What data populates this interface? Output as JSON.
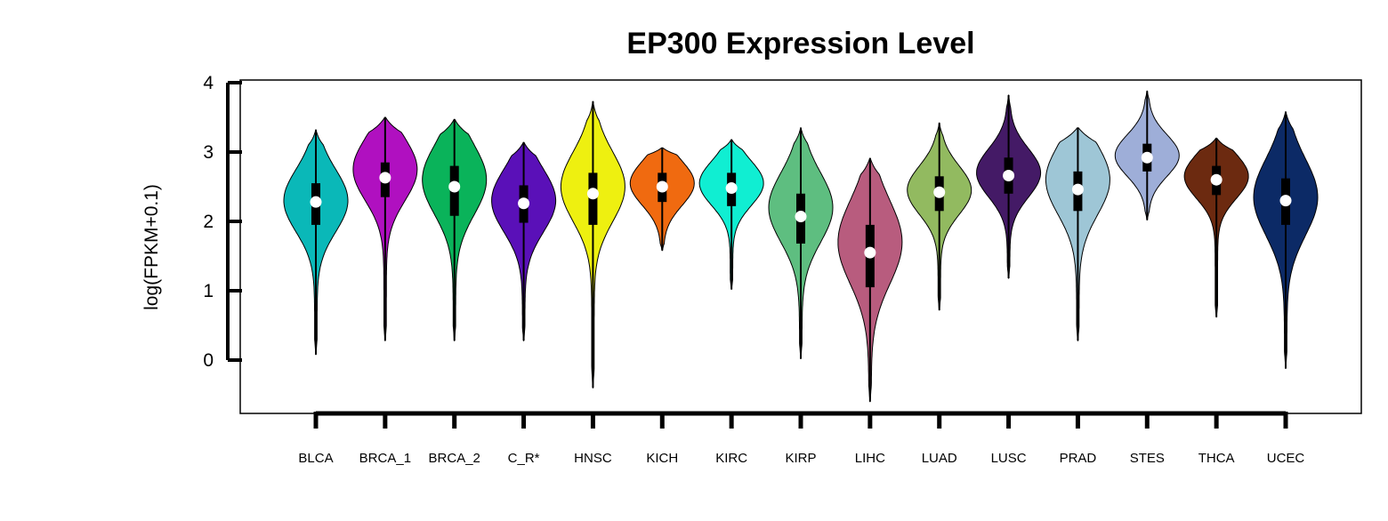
{
  "chart_data": {
    "type": "violin",
    "title": "EP300 Expression Level",
    "xlabel": "",
    "ylabel": "log(FPKM+0.1)",
    "ylim": [
      -0.78,
      4.05
    ],
    "yticks": [
      0,
      1,
      2,
      3,
      4
    ],
    "tick_labels": [
      "0",
      "1",
      "2",
      "3",
      "4"
    ],
    "grid": false,
    "legend": "none",
    "categories": [
      "BLCA",
      "BRCA_1",
      "BRCA_2",
      "C_R*",
      "HNSC",
      "KICH",
      "KIRC",
      "KIRP",
      "LIHC",
      "LUAD",
      "LUSC",
      "PRAD",
      "STES",
      "THCA",
      "UCEC"
    ],
    "colors": [
      "#0ab8b8",
      "#b010c0",
      "#0ab35a",
      "#5a10b8",
      "#eef010",
      "#f06a10",
      "#10eed2",
      "#5ebe80",
      "#b85c7e",
      "#92ba60",
      "#441a66",
      "#9ec6d6",
      "#9eaed8",
      "#6c2a10",
      "#0c2a66"
    ],
    "series": [
      {
        "min": 0.08,
        "max": 3.32,
        "q1": 1.95,
        "median": 2.28,
        "q3": 2.55,
        "mode": 2.3,
        "spread": 0.45
      },
      {
        "min": 0.28,
        "max": 3.5,
        "q1": 2.35,
        "median": 2.63,
        "q3": 2.85,
        "mode": 2.75,
        "spread": 0.45
      },
      {
        "min": 0.28,
        "max": 3.47,
        "q1": 2.08,
        "median": 2.5,
        "q3": 2.8,
        "mode": 2.6,
        "spread": 0.5
      },
      {
        "min": 0.28,
        "max": 3.14,
        "q1": 1.98,
        "median": 2.26,
        "q3": 2.52,
        "mode": 2.3,
        "spread": 0.45
      },
      {
        "min": -0.4,
        "max": 3.73,
        "q1": 1.95,
        "median": 2.4,
        "q3": 2.7,
        "mode": 2.5,
        "spread": 0.5
      },
      {
        "min": 1.58,
        "max": 3.06,
        "q1": 2.28,
        "median": 2.5,
        "q3": 2.7,
        "mode": 2.55,
        "spread": 0.32
      },
      {
        "min": 1.02,
        "max": 3.18,
        "q1": 2.22,
        "median": 2.48,
        "q3": 2.7,
        "mode": 2.55,
        "spread": 0.32
      },
      {
        "min": 0.02,
        "max": 3.35,
        "q1": 1.68,
        "median": 2.07,
        "q3": 2.4,
        "mode": 2.2,
        "spread": 0.5
      },
      {
        "min": -0.6,
        "max": 2.91,
        "q1": 1.05,
        "median": 1.55,
        "q3": 1.95,
        "mode": 1.7,
        "spread": 0.6
      },
      {
        "min": 0.72,
        "max": 3.42,
        "q1": 2.15,
        "median": 2.42,
        "q3": 2.65,
        "mode": 2.45,
        "spread": 0.35
      },
      {
        "min": 1.18,
        "max": 3.82,
        "q1": 2.4,
        "median": 2.66,
        "q3": 2.92,
        "mode": 2.7,
        "spread": 0.35
      },
      {
        "min": 0.28,
        "max": 3.35,
        "q1": 2.15,
        "median": 2.46,
        "q3": 2.72,
        "mode": 2.6,
        "spread": 0.5
      },
      {
        "min": 2.02,
        "max": 3.88,
        "q1": 2.72,
        "median": 2.92,
        "q3": 3.12,
        "mode": 2.95,
        "spread": 0.3
      },
      {
        "min": 0.62,
        "max": 3.2,
        "q1": 2.38,
        "median": 2.6,
        "q3": 2.8,
        "mode": 2.65,
        "spread": 0.32
      },
      {
        "min": -0.12,
        "max": 3.58,
        "q1": 1.95,
        "median": 2.3,
        "q3": 2.62,
        "mode": 2.35,
        "spread": 0.55
      }
    ]
  }
}
